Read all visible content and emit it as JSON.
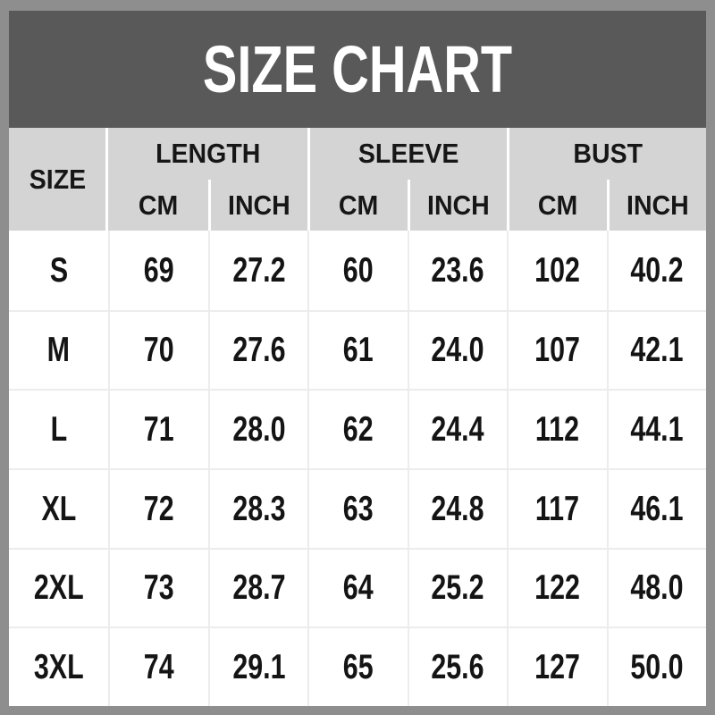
{
  "colors": {
    "frame": "#8e8e8e",
    "banner_bg": "#595959",
    "banner_text": "#ffffff",
    "header_bg": "#d4d4d4",
    "body_bg": "#ffffff",
    "grid_line": "#ececec",
    "text": "#141414",
    "header_divider": "#ffffff"
  },
  "chart_data": {
    "type": "table",
    "title": "SIZE CHART",
    "columns": [
      "SIZE",
      "LENGTH CM",
      "LENGTH INCH",
      "SLEEVE CM",
      "SLEEVE INCH",
      "BUST CM",
      "BUST INCH"
    ],
    "header": {
      "size_label": "SIZE",
      "groups": [
        {
          "label": "LENGTH",
          "sub": [
            "CM",
            "INCH"
          ]
        },
        {
          "label": "SLEEVE",
          "sub": [
            "CM",
            "INCH"
          ]
        },
        {
          "label": "BUST",
          "sub": [
            "CM",
            "INCH"
          ]
        }
      ]
    },
    "rows": [
      {
        "size": "S",
        "length_cm": "69",
        "length_inch": "27.2",
        "sleeve_cm": "60",
        "sleeve_inch": "23.6",
        "bust_cm": "102",
        "bust_inch": "40.2"
      },
      {
        "size": "M",
        "length_cm": "70",
        "length_inch": "27.6",
        "sleeve_cm": "61",
        "sleeve_inch": "24.0",
        "bust_cm": "107",
        "bust_inch": "42.1"
      },
      {
        "size": "L",
        "length_cm": "71",
        "length_inch": "28.0",
        "sleeve_cm": "62",
        "sleeve_inch": "24.4",
        "bust_cm": "112",
        "bust_inch": "44.1"
      },
      {
        "size": "XL",
        "length_cm": "72",
        "length_inch": "28.3",
        "sleeve_cm": "63",
        "sleeve_inch": "24.8",
        "bust_cm": "117",
        "bust_inch": "46.1"
      },
      {
        "size": "2XL",
        "length_cm": "73",
        "length_inch": "28.7",
        "sleeve_cm": "64",
        "sleeve_inch": "25.2",
        "bust_cm": "122",
        "bust_inch": "48.0"
      },
      {
        "size": "3XL",
        "length_cm": "74",
        "length_inch": "29.1",
        "sleeve_cm": "65",
        "sleeve_inch": "25.6",
        "bust_cm": "127",
        "bust_inch": "50.0"
      }
    ]
  }
}
